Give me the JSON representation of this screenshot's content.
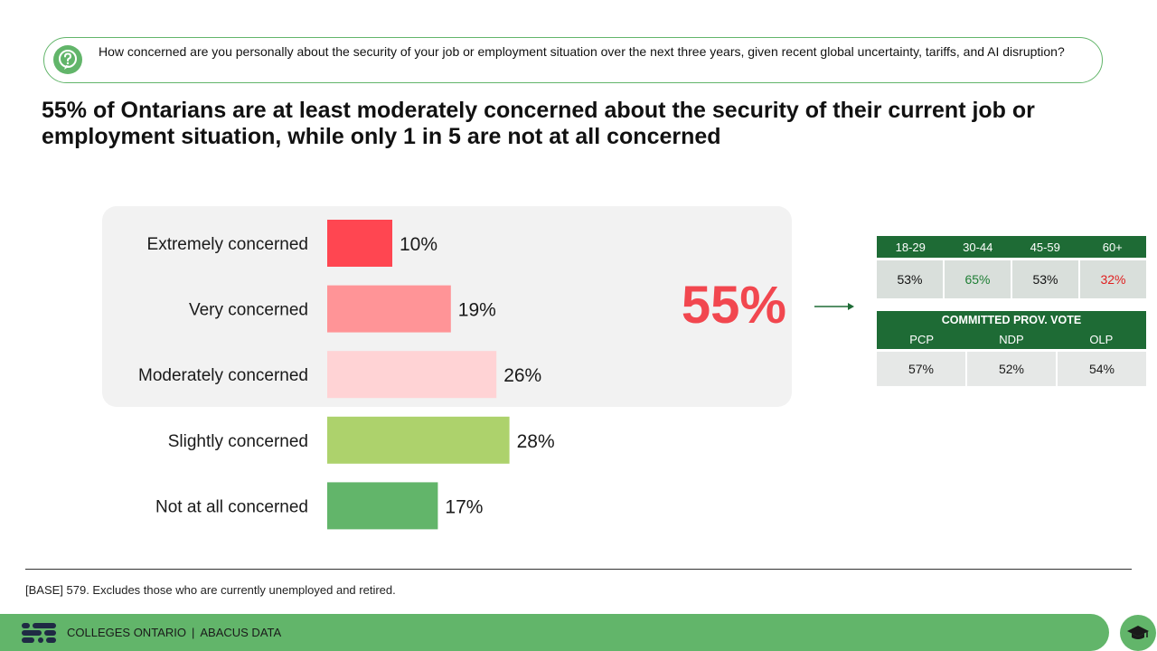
{
  "question": "How concerned are you personally about the security of your job or employment situation over the next three years, given recent global uncertainty, tariffs, and AI disruption?",
  "headline": "55% of Ontarians are at least moderately concerned about the security of their current job or employment situation, while only 1 in 5 are not at all concerned",
  "highlight": {
    "value": "55%",
    "color": "#f2474f"
  },
  "chart_data": {
    "type": "bar",
    "orientation": "horizontal",
    "title": "",
    "xlabel": "",
    "ylabel": "",
    "categories": [
      "Extremely concerned",
      "Very concerned",
      "Moderately concerned",
      "Slightly concerned",
      "Not at all concerned"
    ],
    "values": [
      10,
      19,
      26,
      28,
      17
    ],
    "labels": [
      "10%",
      "19%",
      "26%",
      "28%",
      "17%"
    ],
    "colors": [
      "#ff4651",
      "#ff9497",
      "#ffd3d5",
      "#add26c",
      "#62b56a"
    ],
    "xlim": [
      0,
      35
    ]
  },
  "age_table": {
    "headers": [
      "18-29",
      "30-44",
      "45-59",
      "60+"
    ],
    "values": [
      "53%",
      "65%",
      "53%",
      "32%"
    ],
    "value_colors": [
      "#111111",
      "#1e7e34",
      "#111111",
      "#e02020"
    ]
  },
  "vote_table": {
    "title": "COMMITTED PROV. VOTE",
    "headers": [
      "PCP",
      "NDP",
      "OLP"
    ],
    "values": [
      "57%",
      "52%",
      "54%"
    ]
  },
  "base_note": "[BASE] 579. Excludes those who are currently unemployed and retired.",
  "footer": {
    "left": "COLLEGES ONTARIO",
    "separator": "|",
    "right": "ABACUS DATA"
  },
  "icons": {
    "question": "question-circle-icon",
    "logo": "colleges-ontario-logo-icon",
    "badge": "graduation-cap-icon"
  }
}
